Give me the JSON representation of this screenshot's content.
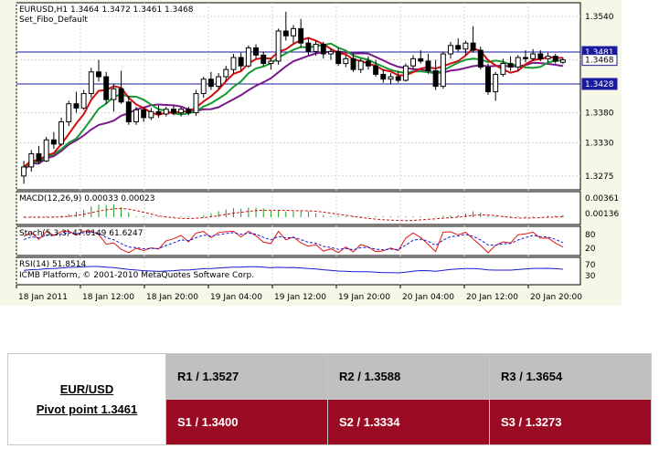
{
  "chart_title": "EURUSD,H1  1.3464 1.3472 1.3461 1.3468",
  "chart_subtitle": "Set_Fibo_Default",
  "macd_label": "MACD(12,26,9) 0.00033 0.00023",
  "stoch_label": "Stoch(5,3,3) 47.0149 61.6247",
  "rsi_label": "RSI(14) 51.8514",
  "copyright": "ICMB Platform, © 2001-2010 MetaQuotes Software Corp.",
  "price_axis": [
    "1.3540",
    "1.3481",
    "1.3468",
    "1.3428",
    "1.3380",
    "1.3330",
    "1.3275"
  ],
  "macd_axis": [
    "0.00361",
    "0.00136"
  ],
  "stoch_axis": [
    "80",
    "20"
  ],
  "rsi_axis": [
    "70",
    "30"
  ],
  "time_axis": [
    "18 Jan 2011",
    "18 Jan 12:00",
    "18 Jan 20:00",
    "19 Jan 04:00",
    "19 Jan 12:00",
    "19 Jan 20:00",
    "20 Jan 04:00",
    "20 Jan 12:00",
    "20 Jan 20:00"
  ],
  "table": {
    "symbol": "EUR/USD",
    "pivot_label": "Pivot point 1.3461",
    "r1": "R1 / 1.3527",
    "r2": "R2 / 1.3588",
    "r3": "R3 / 1.3654",
    "s1": "S1 / 1.3400",
    "s2": "S2 / 1.3334",
    "s3": "S3 / 1.3273"
  },
  "chart_data": {
    "type": "candlestick",
    "symbol": "EURUSD",
    "timeframe": "H1",
    "ylim": [
      1.3255,
      1.356
    ],
    "hlines": [
      1.3481,
      1.3428
    ],
    "current_price": 1.3468,
    "candles": [
      [
        1.3275,
        1.33,
        1.3262,
        1.329
      ],
      [
        1.329,
        1.3318,
        1.3282,
        1.3312
      ],
      [
        1.3312,
        1.3325,
        1.3295,
        1.33
      ],
      [
        1.33,
        1.334,
        1.3298,
        1.3335
      ],
      [
        1.3335,
        1.3348,
        1.332,
        1.3328
      ],
      [
        1.3328,
        1.3372,
        1.3325,
        1.3365
      ],
      [
        1.3365,
        1.34,
        1.3358,
        1.3395
      ],
      [
        1.3395,
        1.3415,
        1.338,
        1.3388
      ],
      [
        1.3388,
        1.3418,
        1.3385,
        1.3412
      ],
      [
        1.3412,
        1.3455,
        1.3405,
        1.3448
      ],
      [
        1.3448,
        1.3468,
        1.3432,
        1.344
      ],
      [
        1.344,
        1.3448,
        1.3395,
        1.3402
      ],
      [
        1.3402,
        1.3428,
        1.3382,
        1.342
      ],
      [
        1.342,
        1.345,
        1.3395,
        1.3398
      ],
      [
        1.3398,
        1.3408,
        1.336,
        1.3365
      ],
      [
        1.3365,
        1.339,
        1.336,
        1.3385
      ],
      [
        1.3385,
        1.339,
        1.3365,
        1.3372
      ],
      [
        1.3372,
        1.3388,
        1.3368,
        1.3382
      ],
      [
        1.3382,
        1.3392,
        1.3372,
        1.3378
      ],
      [
        1.3378,
        1.339,
        1.3374,
        1.3386
      ],
      [
        1.3386,
        1.3392,
        1.3376,
        1.338
      ],
      [
        1.338,
        1.339,
        1.3374,
        1.3386
      ],
      [
        1.3386,
        1.339,
        1.3376,
        1.338
      ],
      [
        1.338,
        1.3418,
        1.3375,
        1.3412
      ],
      [
        1.3412,
        1.344,
        1.3405,
        1.3436
      ],
      [
        1.3436,
        1.3448,
        1.3418,
        1.3424
      ],
      [
        1.3424,
        1.3446,
        1.342,
        1.344
      ],
      [
        1.344,
        1.3458,
        1.3432,
        1.3452
      ],
      [
        1.3452,
        1.3478,
        1.3445,
        1.3472
      ],
      [
        1.3472,
        1.348,
        1.345,
        1.3458
      ],
      [
        1.3458,
        1.3492,
        1.3455,
        1.3488
      ],
      [
        1.3488,
        1.3494,
        1.347,
        1.3476
      ],
      [
        1.3476,
        1.3482,
        1.3458,
        1.3462
      ],
      [
        1.3462,
        1.347,
        1.3452,
        1.3466
      ],
      [
        1.3466,
        1.352,
        1.346,
        1.3516
      ],
      [
        1.3516,
        1.3548,
        1.35,
        1.3508
      ],
      [
        1.3508,
        1.3526,
        1.3495,
        1.352
      ],
      [
        1.352,
        1.3536,
        1.3488,
        1.3496
      ],
      [
        1.3496,
        1.3505,
        1.3476,
        1.3482
      ],
      [
        1.3482,
        1.35,
        1.3475,
        1.3494
      ],
      [
        1.3494,
        1.3498,
        1.347,
        1.3478
      ],
      [
        1.3478,
        1.3486,
        1.3468,
        1.3482
      ],
      [
        1.3482,
        1.3488,
        1.3458,
        1.3462
      ],
      [
        1.3462,
        1.3476,
        1.3456,
        1.347
      ],
      [
        1.347,
        1.3478,
        1.3448,
        1.3452
      ],
      [
        1.3452,
        1.347,
        1.3446,
        1.3466
      ],
      [
        1.3466,
        1.3474,
        1.3452,
        1.3458
      ],
      [
        1.3458,
        1.3468,
        1.344,
        1.3444
      ],
      [
        1.3444,
        1.3452,
        1.343,
        1.3436
      ],
      [
        1.3436,
        1.3446,
        1.3428,
        1.344
      ],
      [
        1.344,
        1.345,
        1.343,
        1.3434
      ],
      [
        1.3434,
        1.3462,
        1.3432,
        1.3458
      ],
      [
        1.3458,
        1.3476,
        1.3452,
        1.347
      ],
      [
        1.347,
        1.3484,
        1.3462,
        1.3466
      ],
      [
        1.3466,
        1.3478,
        1.3445,
        1.345
      ],
      [
        1.345,
        1.3468,
        1.3418,
        1.3424
      ],
      [
        1.3424,
        1.3482,
        1.342,
        1.3478
      ],
      [
        1.3478,
        1.3498,
        1.347,
        1.3492
      ],
      [
        1.3492,
        1.3504,
        1.3482,
        1.3486
      ],
      [
        1.3486,
        1.35,
        1.3476,
        1.3496
      ],
      [
        1.3496,
        1.3524,
        1.348,
        1.3484
      ],
      [
        1.3484,
        1.349,
        1.3452,
        1.3456
      ],
      [
        1.3456,
        1.3462,
        1.341,
        1.3415
      ],
      [
        1.3415,
        1.3448,
        1.34,
        1.3444
      ],
      [
        1.3444,
        1.347,
        1.344,
        1.3462
      ],
      [
        1.3462,
        1.3474,
        1.345,
        1.3456
      ],
      [
        1.3456,
        1.3476,
        1.345,
        1.3472
      ],
      [
        1.3472,
        1.3484,
        1.3464,
        1.347
      ],
      [
        1.347,
        1.3486,
        1.3466,
        1.3478
      ],
      [
        1.3478,
        1.3484,
        1.3466,
        1.347
      ],
      [
        1.347,
        1.348,
        1.3464,
        1.3474
      ],
      [
        1.3474,
        1.3478,
        1.3462,
        1.3466
      ],
      [
        1.3464,
        1.3472,
        1.3461,
        1.3468
      ]
    ]
  }
}
